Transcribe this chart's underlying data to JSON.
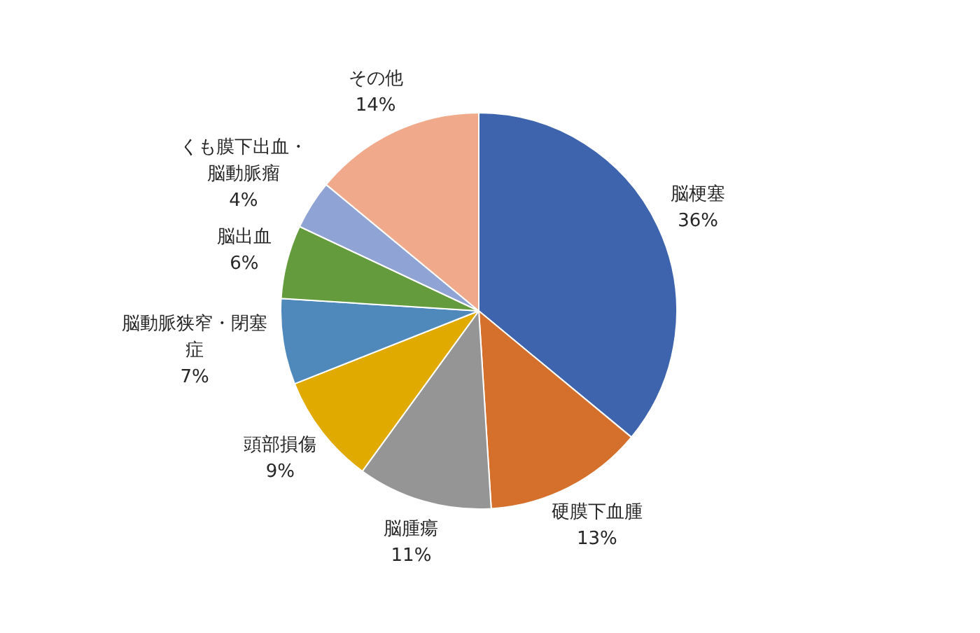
{
  "chart_data": {
    "type": "pie",
    "categories": [
      "脳梗塞",
      "硬膜下血腫",
      "脳腫瘍",
      "頭部損傷",
      "脳動脈狭窄・閉塞症",
      "脳出血",
      "くも膜下出血・脳動脈瘤",
      "その他"
    ],
    "values": [
      36,
      13,
      11,
      9,
      7,
      6,
      4,
      14
    ],
    "colors": [
      "#3e64ad",
      "#d4702c",
      "#959595",
      "#e0aa00",
      "#4f89bc",
      "#639b3d",
      "#8fa4d4",
      "#f0a98a"
    ],
    "value_labels": [
      "36%",
      "13%",
      "11%",
      "9%",
      "7%",
      "6%",
      "4%",
      "14%"
    ]
  }
}
